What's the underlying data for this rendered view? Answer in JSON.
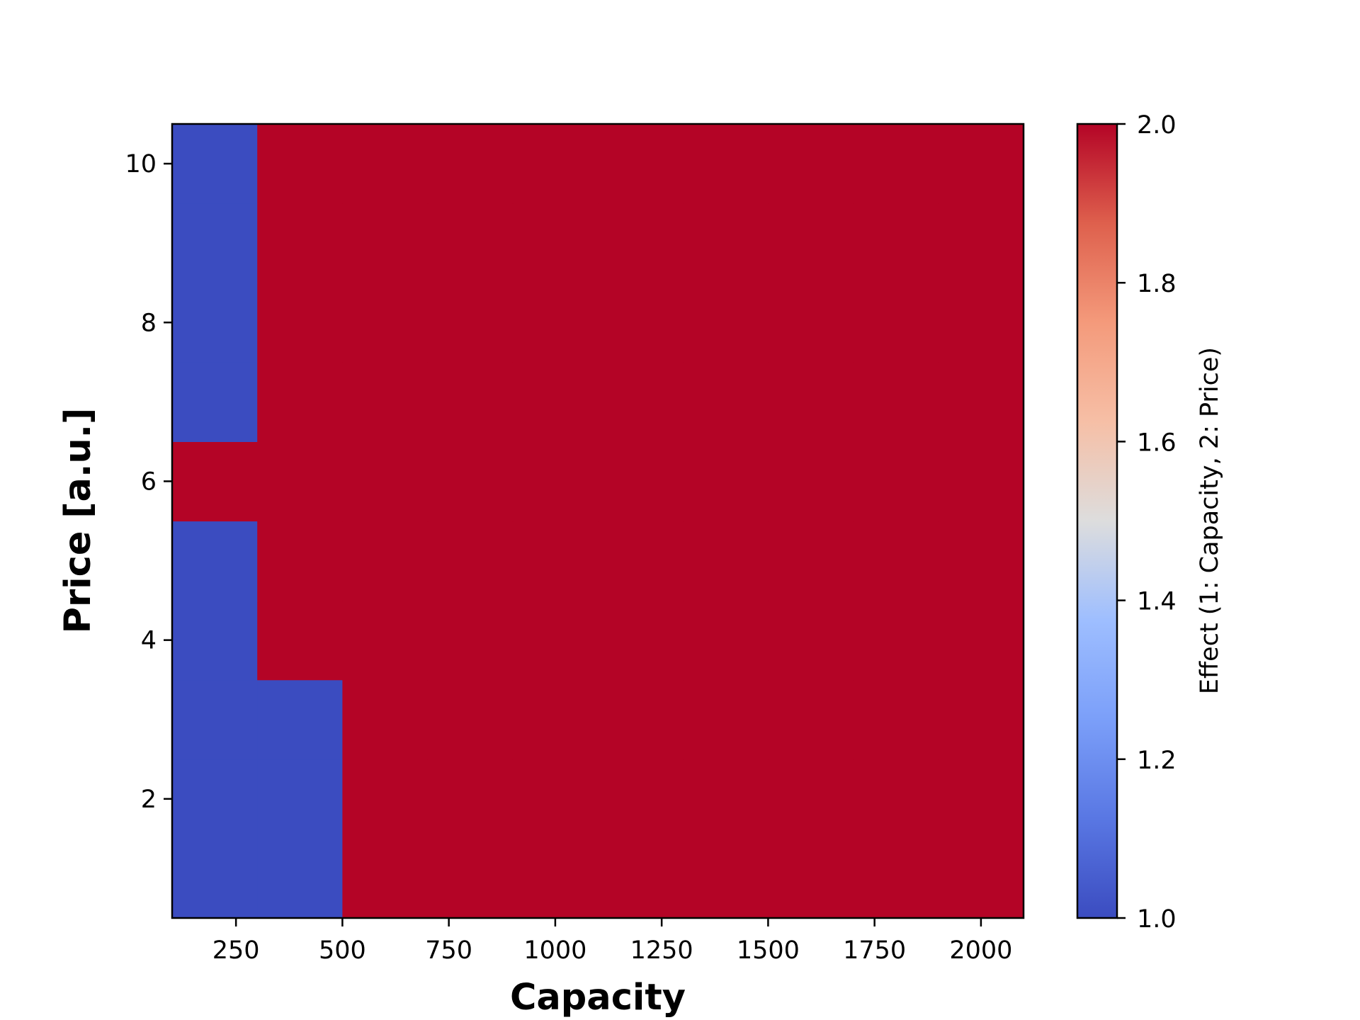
{
  "chart_data": {
    "type": "heatmap",
    "title": "",
    "xlabel": "Capacity",
    "ylabel": "Price [a.u.]",
    "xlim": [
      100,
      2100
    ],
    "ylim": [
      0.5,
      10.5
    ],
    "x_ticks": [
      250,
      500,
      750,
      1000,
      1250,
      1500,
      1750,
      2000
    ],
    "y_ticks": [
      2,
      4,
      6,
      8,
      10
    ],
    "x_tick_labels": [
      "250",
      "500",
      "750",
      "1000",
      "1250",
      "1500",
      "1750",
      "2000"
    ],
    "y_tick_labels": [
      "2",
      "4",
      "6",
      "8",
      "10"
    ],
    "x": [
      200,
      400,
      600,
      800,
      1000,
      1200,
      1400,
      1600,
      1800,
      2000
    ],
    "y": [
      1,
      2,
      3,
      4,
      5,
      6,
      7,
      8,
      9,
      10
    ],
    "z": [
      [
        1,
        1,
        2,
        2,
        2,
        2,
        2,
        2,
        2,
        2
      ],
      [
        1,
        1,
        2,
        2,
        2,
        2,
        2,
        2,
        2,
        2
      ],
      [
        1,
        1,
        2,
        2,
        2,
        2,
        2,
        2,
        2,
        2
      ],
      [
        1,
        2,
        2,
        2,
        2,
        2,
        2,
        2,
        2,
        2
      ],
      [
        1,
        2,
        2,
        2,
        2,
        2,
        2,
        2,
        2,
        2
      ],
      [
        2,
        2,
        2,
        2,
        2,
        2,
        2,
        2,
        2,
        2
      ],
      [
        1,
        2,
        2,
        2,
        2,
        2,
        2,
        2,
        2,
        2
      ],
      [
        1,
        2,
        2,
        2,
        2,
        2,
        2,
        2,
        2,
        2
      ],
      [
        1,
        2,
        2,
        2,
        2,
        2,
        2,
        2,
        2,
        2
      ],
      [
        1,
        2,
        2,
        2,
        2,
        2,
        2,
        2,
        2,
        2
      ]
    ],
    "colormap": "coolwarm",
    "colorbar": {
      "label": "Effect (1: Capacity, 2: Price)",
      "range": [
        1.0,
        2.0
      ],
      "ticks": [
        1.0,
        1.2,
        1.4,
        1.6,
        1.8,
        2.0
      ],
      "tick_labels": [
        "1.0",
        "1.2",
        "1.4",
        "1.6",
        "1.8",
        "2.0"
      ]
    },
    "colors": {
      "low": "#3b4cc0",
      "high": "#b40426"
    },
    "grid": false
  }
}
